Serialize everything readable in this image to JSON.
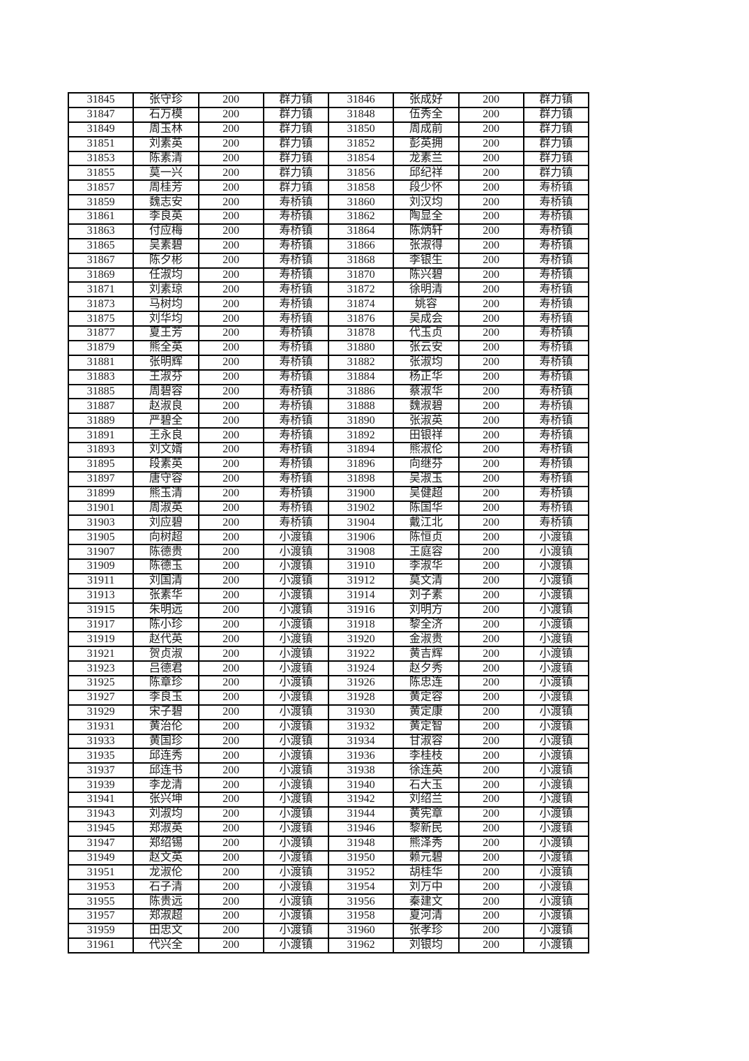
{
  "document": {
    "background_color": "#ffffff",
    "grid_color": "#000000",
    "text_color": "#1a1a1a"
  },
  "table": {
    "column_roles": [
      "record-id",
      "person-name",
      "amount",
      "town",
      "record-id",
      "person-name",
      "amount",
      "town"
    ],
    "rows": [
      [
        "31845",
        "张守珍",
        "200",
        "群力镇",
        "31846",
        "张成好",
        "200",
        "群力镇"
      ],
      [
        "31847",
        "石万模",
        "200",
        "群力镇",
        "31848",
        "伍秀全",
        "200",
        "群力镇"
      ],
      [
        "31849",
        "周玉林",
        "200",
        "群力镇",
        "31850",
        "周成前",
        "200",
        "群力镇"
      ],
      [
        "31851",
        "刘素英",
        "200",
        "群力镇",
        "31852",
        "彭英拥",
        "200",
        "群力镇"
      ],
      [
        "31853",
        "陈素清",
        "200",
        "群力镇",
        "31854",
        "龙素兰",
        "200",
        "群力镇"
      ],
      [
        "31855",
        "莫一兴",
        "200",
        "群力镇",
        "31856",
        "邱纪祥",
        "200",
        "群力镇"
      ],
      [
        "31857",
        "周桂芳",
        "200",
        "群力镇",
        "31858",
        "段少怀",
        "200",
        "寿桥镇"
      ],
      [
        "31859",
        "魏志安",
        "200",
        "寿桥镇",
        "31860",
        "刘汉均",
        "200",
        "寿桥镇"
      ],
      [
        "31861",
        "李良英",
        "200",
        "寿桥镇",
        "31862",
        "陶显全",
        "200",
        "寿桥镇"
      ],
      [
        "31863",
        "付应梅",
        "200",
        "寿桥镇",
        "31864",
        "陈炳轩",
        "200",
        "寿桥镇"
      ],
      [
        "31865",
        "吴素碧",
        "200",
        "寿桥镇",
        "31866",
        "张淑得",
        "200",
        "寿桥镇"
      ],
      [
        "31867",
        "陈夕彬",
        "200",
        "寿桥镇",
        "31868",
        "李银生",
        "200",
        "寿桥镇"
      ],
      [
        "31869",
        "任淑均",
        "200",
        "寿桥镇",
        "31870",
        "陈兴碧",
        "200",
        "寿桥镇"
      ],
      [
        "31871",
        "刘素琼",
        "200",
        "寿桥镇",
        "31872",
        "徐明清",
        "200",
        "寿桥镇"
      ],
      [
        "31873",
        "马树均",
        "200",
        "寿桥镇",
        "31874",
        "姚容",
        "200",
        "寿桥镇"
      ],
      [
        "31875",
        "刘华均",
        "200",
        "寿桥镇",
        "31876",
        "吴成会",
        "200",
        "寿桥镇"
      ],
      [
        "31877",
        "夏王芳",
        "200",
        "寿桥镇",
        "31878",
        "代玉贞",
        "200",
        "寿桥镇"
      ],
      [
        "31879",
        "熊全英",
        "200",
        "寿桥镇",
        "31880",
        "张云安",
        "200",
        "寿桥镇"
      ],
      [
        "31881",
        "张明辉",
        "200",
        "寿桥镇",
        "31882",
        "张淑均",
        "200",
        "寿桥镇"
      ],
      [
        "31883",
        "王淑芬",
        "200",
        "寿桥镇",
        "31884",
        "杨正华",
        "200",
        "寿桥镇"
      ],
      [
        "31885",
        "周碧容",
        "200",
        "寿桥镇",
        "31886",
        "蔡淑华",
        "200",
        "寿桥镇"
      ],
      [
        "31887",
        "赵淑良",
        "200",
        "寿桥镇",
        "31888",
        "魏淑碧",
        "200",
        "寿桥镇"
      ],
      [
        "31889",
        "严碧全",
        "200",
        "寿桥镇",
        "31890",
        "张淑英",
        "200",
        "寿桥镇"
      ],
      [
        "31891",
        "王永良",
        "200",
        "寿桥镇",
        "31892",
        "田银祥",
        "200",
        "寿桥镇"
      ],
      [
        "31893",
        "刘文婿",
        "200",
        "寿桥镇",
        "31894",
        "熊淑伦",
        "200",
        "寿桥镇"
      ],
      [
        "31895",
        "段素英",
        "200",
        "寿桥镇",
        "31896",
        "向继芬",
        "200",
        "寿桥镇"
      ],
      [
        "31897",
        "唐守容",
        "200",
        "寿桥镇",
        "31898",
        "吴淑玉",
        "200",
        "寿桥镇"
      ],
      [
        "31899",
        "熊玉清",
        "200",
        "寿桥镇",
        "31900",
        "吴健超",
        "200",
        "寿桥镇"
      ],
      [
        "31901",
        "周淑英",
        "200",
        "寿桥镇",
        "31902",
        "陈国华",
        "200",
        "寿桥镇"
      ],
      [
        "31903",
        "刘应碧",
        "200",
        "寿桥镇",
        "31904",
        "戴江北",
        "200",
        "寿桥镇"
      ],
      [
        "31905",
        "向树超",
        "200",
        "小渡镇",
        "31906",
        "陈恒贞",
        "200",
        "小渡镇"
      ],
      [
        "31907",
        "陈德贵",
        "200",
        "小渡镇",
        "31908",
        "王庭容",
        "200",
        "小渡镇"
      ],
      [
        "31909",
        "陈德玉",
        "200",
        "小渡镇",
        "31910",
        "李淑华",
        "200",
        "小渡镇"
      ],
      [
        "31911",
        "刘国清",
        "200",
        "小渡镇",
        "31912",
        "莫文清",
        "200",
        "小渡镇"
      ],
      [
        "31913",
        "张素华",
        "200",
        "小渡镇",
        "31914",
        "刘子素",
        "200",
        "小渡镇"
      ],
      [
        "31915",
        "朱明远",
        "200",
        "小渡镇",
        "31916",
        "刘明方",
        "200",
        "小渡镇"
      ],
      [
        "31917",
        "陈小珍",
        "200",
        "小渡镇",
        "31918",
        "黎全济",
        "200",
        "小渡镇"
      ],
      [
        "31919",
        "赵代英",
        "200",
        "小渡镇",
        "31920",
        "金淑贵",
        "200",
        "小渡镇"
      ],
      [
        "31921",
        "贺贞淑",
        "200",
        "小渡镇",
        "31922",
        "黄吉辉",
        "200",
        "小渡镇"
      ],
      [
        "31923",
        "吕德君",
        "200",
        "小渡镇",
        "31924",
        "赵夕秀",
        "200",
        "小渡镇"
      ],
      [
        "31925",
        "陈章珍",
        "200",
        "小渡镇",
        "31926",
        "陈忠连",
        "200",
        "小渡镇"
      ],
      [
        "31927",
        "李良玉",
        "200",
        "小渡镇",
        "31928",
        "黄定容",
        "200",
        "小渡镇"
      ],
      [
        "31929",
        "宋子碧",
        "200",
        "小渡镇",
        "31930",
        "黄定康",
        "200",
        "小渡镇"
      ],
      [
        "31931",
        "黄治伦",
        "200",
        "小渡镇",
        "31932",
        "黄定智",
        "200",
        "小渡镇"
      ],
      [
        "31933",
        "黄国珍",
        "200",
        "小渡镇",
        "31934",
        "甘淑容",
        "200",
        "小渡镇"
      ],
      [
        "31935",
        "邱连秀",
        "200",
        "小渡镇",
        "31936",
        "李桂枝",
        "200",
        "小渡镇"
      ],
      [
        "31937",
        "邱连书",
        "200",
        "小渡镇",
        "31938",
        "徐连英",
        "200",
        "小渡镇"
      ],
      [
        "31939",
        "李龙清",
        "200",
        "小渡镇",
        "31940",
        "石大玉",
        "200",
        "小渡镇"
      ],
      [
        "31941",
        "张兴坤",
        "200",
        "小渡镇",
        "31942",
        "刘绍兰",
        "200",
        "小渡镇"
      ],
      [
        "31943",
        "刘淑均",
        "200",
        "小渡镇",
        "31944",
        "黄宪章",
        "200",
        "小渡镇"
      ],
      [
        "31945",
        "郑淑英",
        "200",
        "小渡镇",
        "31946",
        "黎新民",
        "200",
        "小渡镇"
      ],
      [
        "31947",
        "郑绍锡",
        "200",
        "小渡镇",
        "31948",
        "熊泽秀",
        "200",
        "小渡镇"
      ],
      [
        "31949",
        "赵文英",
        "200",
        "小渡镇",
        "31950",
        "赖元碧",
        "200",
        "小渡镇"
      ],
      [
        "31951",
        "龙淑伦",
        "200",
        "小渡镇",
        "31952",
        "胡桂华",
        "200",
        "小渡镇"
      ],
      [
        "31953",
        "石子清",
        "200",
        "小渡镇",
        "31954",
        "刘万中",
        "200",
        "小渡镇"
      ],
      [
        "31955",
        "陈贵远",
        "200",
        "小渡镇",
        "31956",
        "秦建文",
        "200",
        "小渡镇"
      ],
      [
        "31957",
        "郑淑超",
        "200",
        "小渡镇",
        "31958",
        "夏河清",
        "200",
        "小渡镇"
      ],
      [
        "31959",
        "田忠文",
        "200",
        "小渡镇",
        "31960",
        "张孝珍",
        "200",
        "小渡镇"
      ],
      [
        "31961",
        "代兴全",
        "200",
        "小渡镇",
        "31962",
        "刘银均",
        "200",
        "小渡镇"
      ]
    ]
  }
}
